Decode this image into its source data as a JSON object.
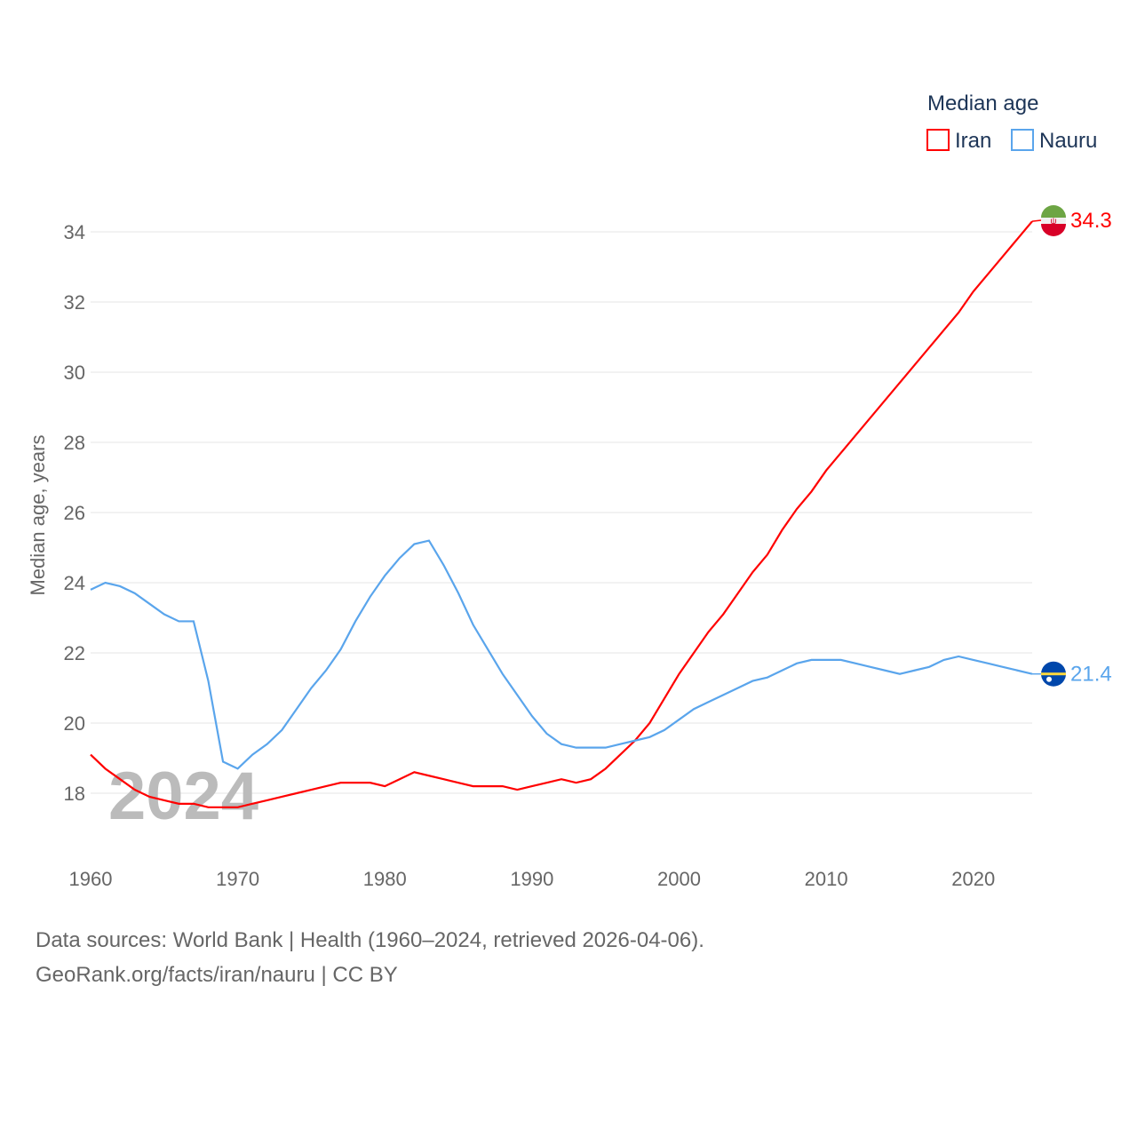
{
  "chart_data": {
    "type": "line",
    "legend_title": "Median age",
    "legend_placement": "top-right",
    "ylabel": "Median age, years",
    "xlabel": "",
    "year_watermark": "2024",
    "xlim": [
      1960,
      2024
    ],
    "ylim": [
      16.5,
      35
    ],
    "xticks": [
      1960,
      1970,
      1980,
      1990,
      2000,
      2010,
      2020
    ],
    "yticks": [
      18,
      20,
      22,
      24,
      26,
      28,
      30,
      32,
      34
    ],
    "grid": true,
    "x": [
      1960,
      1961,
      1962,
      1963,
      1964,
      1965,
      1966,
      1967,
      1968,
      1969,
      1970,
      1971,
      1972,
      1973,
      1974,
      1975,
      1976,
      1977,
      1978,
      1979,
      1980,
      1981,
      1982,
      1983,
      1984,
      1985,
      1986,
      1987,
      1988,
      1989,
      1990,
      1991,
      1992,
      1993,
      1994,
      1995,
      1996,
      1997,
      1998,
      1999,
      2000,
      2001,
      2002,
      2003,
      2004,
      2005,
      2006,
      2007,
      2008,
      2009,
      2010,
      2011,
      2012,
      2013,
      2014,
      2015,
      2016,
      2017,
      2018,
      2019,
      2020,
      2021,
      2022,
      2023,
      2024
    ],
    "series": [
      {
        "name": "Iran",
        "color": "#ff0000",
        "end_label": "34.3",
        "values": [
          19.1,
          18.7,
          18.4,
          18.1,
          17.9,
          17.8,
          17.7,
          17.7,
          17.6,
          17.6,
          17.6,
          17.7,
          17.8,
          17.9,
          18.0,
          18.1,
          18.2,
          18.3,
          18.3,
          18.3,
          18.2,
          18.4,
          18.6,
          18.5,
          18.4,
          18.3,
          18.2,
          18.2,
          18.2,
          18.1,
          18.2,
          18.3,
          18.4,
          18.3,
          18.4,
          18.7,
          19.1,
          19.5,
          20.0,
          20.7,
          21.4,
          22.0,
          22.6,
          23.1,
          23.7,
          24.3,
          24.8,
          25.5,
          26.1,
          26.6,
          27.2,
          27.7,
          28.2,
          28.7,
          29.2,
          29.7,
          30.2,
          30.7,
          31.2,
          31.7,
          32.3,
          32.8,
          33.3,
          33.8,
          34.3
        ]
      },
      {
        "name": "Nauru",
        "color": "#5aa5ec",
        "end_label": "21.4",
        "values": [
          23.8,
          24.0,
          23.9,
          23.7,
          23.4,
          23.1,
          22.9,
          22.9,
          21.2,
          18.9,
          18.7,
          19.1,
          19.4,
          19.8,
          20.4,
          21.0,
          21.5,
          22.1,
          22.9,
          23.6,
          24.2,
          24.7,
          25.1,
          25.2,
          24.5,
          23.7,
          22.8,
          22.1,
          21.4,
          20.8,
          20.2,
          19.7,
          19.4,
          19.3,
          19.3,
          19.3,
          19.4,
          19.5,
          19.6,
          19.8,
          20.1,
          20.4,
          20.6,
          20.8,
          21.0,
          21.2,
          21.3,
          21.5,
          21.7,
          21.8,
          21.8,
          21.8,
          21.7,
          21.6,
          21.5,
          21.4,
          21.5,
          21.6,
          21.8,
          21.9,
          21.8,
          21.7,
          21.6,
          21.5,
          21.4
        ]
      }
    ]
  },
  "footer": {
    "line1": "Data sources: World Bank | Health (1960–2024, retrieved 2026-04-06).",
    "line2": "GeoRank.org/facts/iran/nauru | CC BY"
  }
}
